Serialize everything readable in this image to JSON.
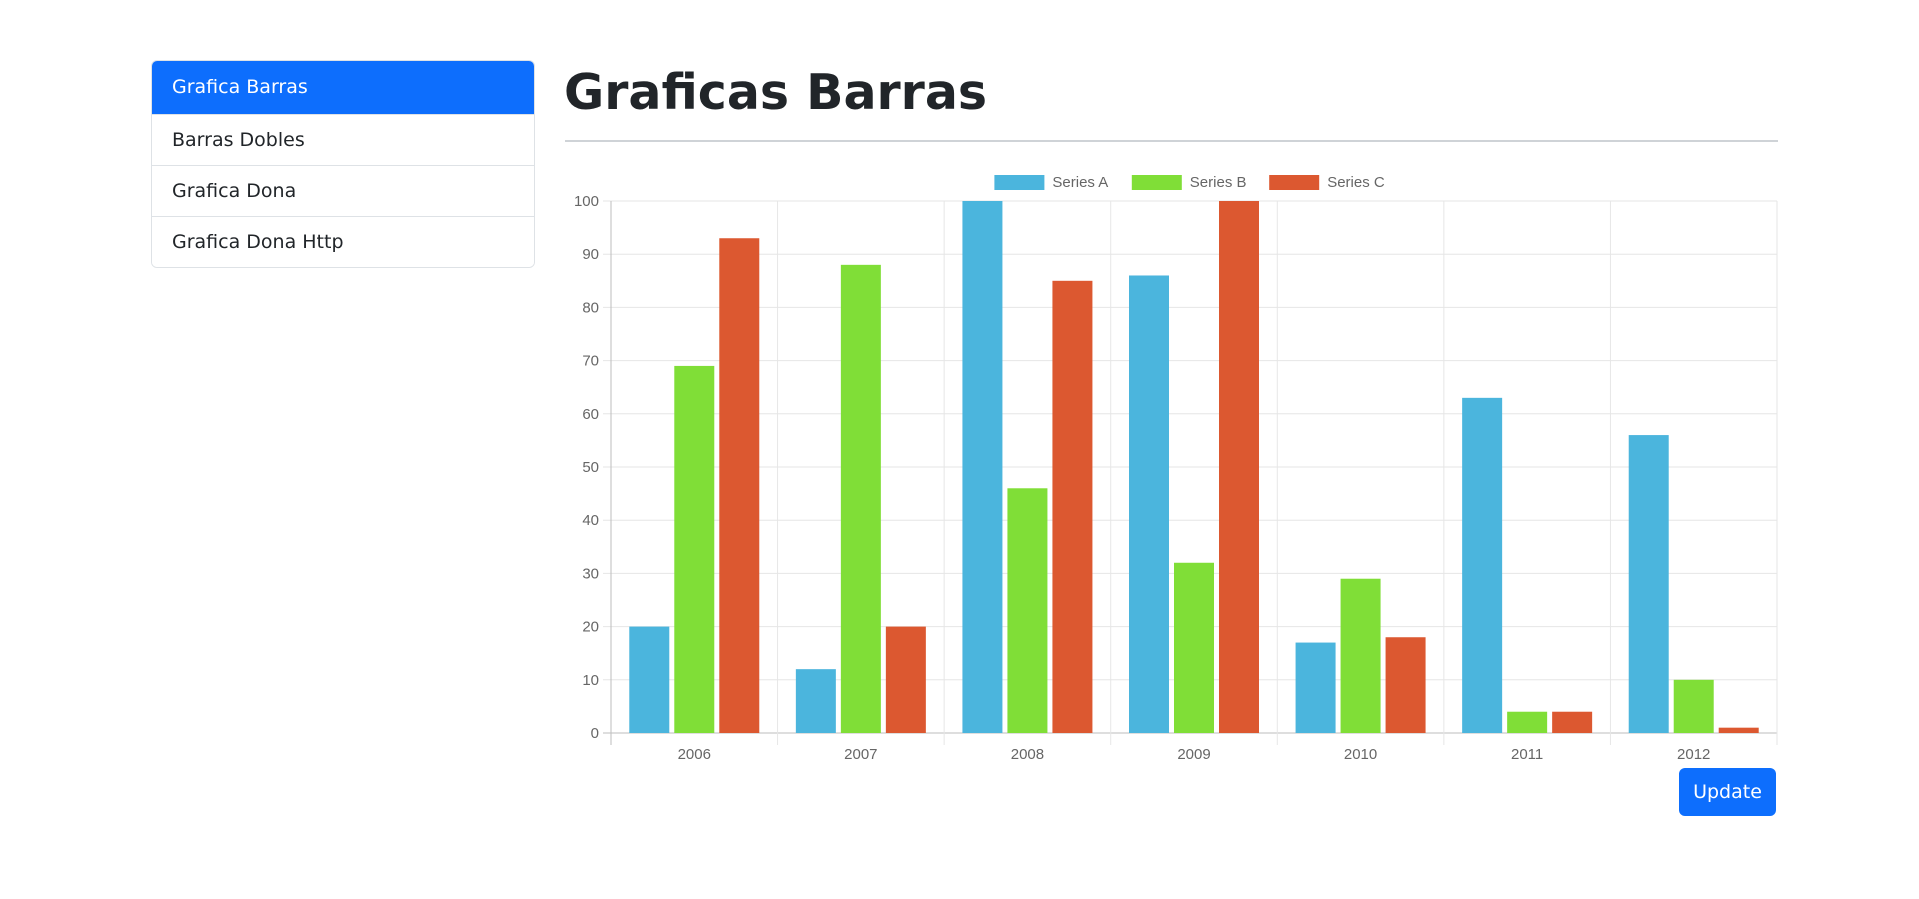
{
  "sidebar": {
    "items": [
      {
        "label": "Grafica Barras",
        "active": true
      },
      {
        "label": "Barras Dobles",
        "active": false
      },
      {
        "label": "Grafica Dona",
        "active": false
      },
      {
        "label": "Grafica Dona Http",
        "active": false
      }
    ]
  },
  "main": {
    "title": "Graficas Barras",
    "update_label": "Update"
  },
  "colors": {
    "primary": "#0d6efd",
    "series_a": "#4bb5dd",
    "series_b": "#80de37",
    "series_c": "#dc5830"
  },
  "chart_data": {
    "type": "bar",
    "title": "",
    "xlabel": "",
    "ylabel": "",
    "categories": [
      "2006",
      "2007",
      "2008",
      "2009",
      "2010",
      "2011",
      "2012"
    ],
    "series": [
      {
        "name": "Series A",
        "color": "#4bb5dd",
        "values": [
          20,
          12,
          100,
          86,
          17,
          63,
          56
        ]
      },
      {
        "name": "Series B",
        "color": "#80de37",
        "values": [
          69,
          88,
          46,
          32,
          29,
          4,
          10
        ]
      },
      {
        "name": "Series C",
        "color": "#dc5830",
        "values": [
          93,
          20,
          85,
          100,
          18,
          4,
          1
        ]
      }
    ],
    "ylim": [
      0,
      100
    ],
    "yticks": [
      0,
      10,
      20,
      30,
      40,
      50,
      60,
      70,
      80,
      90,
      100
    ],
    "grid": true,
    "legend_position": "top-center"
  }
}
